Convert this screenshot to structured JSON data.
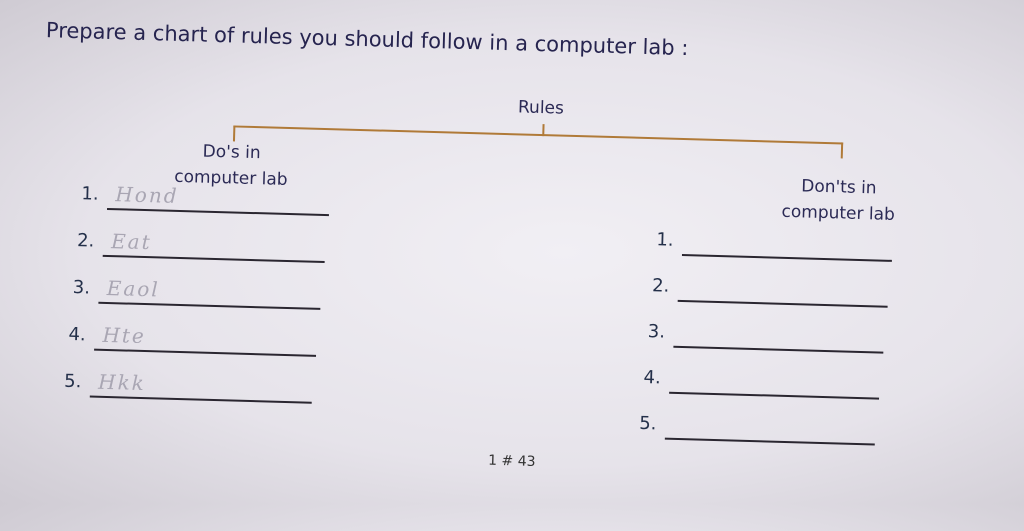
{
  "worksheet": {
    "title": "Prepare a chart of rules you should follow in a computer lab :",
    "root_label": "Rules",
    "dos": {
      "heading_line1": "Do's in",
      "heading_line2": "computer lab",
      "items": [
        {
          "number": "1.",
          "answer": "Hond"
        },
        {
          "number": "2.",
          "answer": "Eat"
        },
        {
          "number": "3.",
          "answer": "Eaol"
        },
        {
          "number": "4.",
          "answer": "Hte"
        },
        {
          "number": "5.",
          "answer": "Hkk"
        }
      ]
    },
    "donts": {
      "heading_line1": "Don'ts in",
      "heading_line2": "computer lab",
      "items": [
        {
          "number": "1.",
          "answer": ""
        },
        {
          "number": "2.",
          "answer": ""
        },
        {
          "number": "3.",
          "answer": ""
        },
        {
          "number": "4.",
          "answer": ""
        },
        {
          "number": "5.",
          "answer": ""
        }
      ]
    },
    "page_number": "1 # 43"
  },
  "colors": {
    "text": "#2b2a55",
    "tree_lines": "#b07a38",
    "pencil": "#a9a6b3"
  }
}
